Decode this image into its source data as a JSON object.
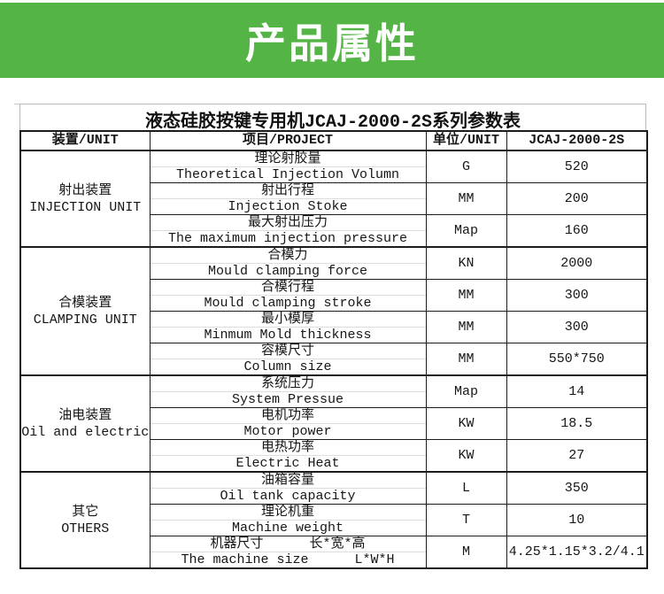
{
  "colors": {
    "banner_bg": "#55b446",
    "banner_text": "#ffffff",
    "table_border": "#1c1c1c",
    "title_box_border": "#b9b9b9",
    "cell_divider": "#dddddd"
  },
  "banner": {
    "title": "产品属性"
  },
  "table": {
    "title": "液态硅胶按键专用机JCAJ-2000-2S系列参数表",
    "columns": [
      "装置/UNIT",
      "项目/PROJECT",
      "单位/UNIT",
      "JCAJ-2000-2S"
    ],
    "groups": [
      {
        "id": "injection-unit",
        "name_cn": "射出装置",
        "name_en": "INJECTION UNIT",
        "rows": [
          {
            "cn": "理论射胶量",
            "en": "Theoretical Injection Volumn",
            "unit": "G",
            "value": "520"
          },
          {
            "cn": "射出行程",
            "en": "Injection Stoke",
            "unit": "MM",
            "value": "200"
          },
          {
            "cn": "最大射出压力",
            "en": "The maximum injection pressure",
            "unit": "Map",
            "value": "160"
          }
        ]
      },
      {
        "id": "clamping-unit",
        "name_cn": "合模装置",
        "name_en": "CLAMPING UNIT",
        "rows": [
          {
            "cn": "合模力",
            "en": "Mould clamping force",
            "unit": "KN",
            "value": "2000"
          },
          {
            "cn": "合模行程",
            "en": "Mould clamping stroke",
            "unit": "MM",
            "value": "300"
          },
          {
            "cn": "最小模厚",
            "en": "Minmum Mold thickness",
            "unit": "MM",
            "value": "300"
          },
          {
            "cn": "容模尺寸",
            "en": "Column size",
            "unit": "MM",
            "value": "550*750"
          }
        ]
      },
      {
        "id": "oil-electric",
        "name_cn": "油电装置",
        "name_en": "Oil and electric",
        "rows": [
          {
            "cn": "系统压力",
            "en": "System Pressue",
            "unit": "Map",
            "value": "14"
          },
          {
            "cn": "电机功率",
            "en": "Motor power",
            "unit": "KW",
            "value": "18.5"
          },
          {
            "cn": "电热功率",
            "en": "Electric Heat",
            "unit": "KW",
            "value": "27"
          }
        ]
      },
      {
        "id": "others",
        "name_cn": "其它",
        "name_en": "OTHERS",
        "rows": [
          {
            "cn": "油箱容量",
            "en": "Oil tank capacity",
            "unit": "L",
            "value": "350"
          },
          {
            "cn": "理论机重",
            "en": "Machine weight",
            "unit": "T",
            "value": "10"
          },
          {
            "cn": "机器尺寸",
            "cn2": "长*宽*高",
            "en": "The machine size",
            "en2": "L*W*H",
            "unit": "M",
            "value": "4.25*1.15*3.2/4.1"
          }
        ]
      }
    ]
  }
}
